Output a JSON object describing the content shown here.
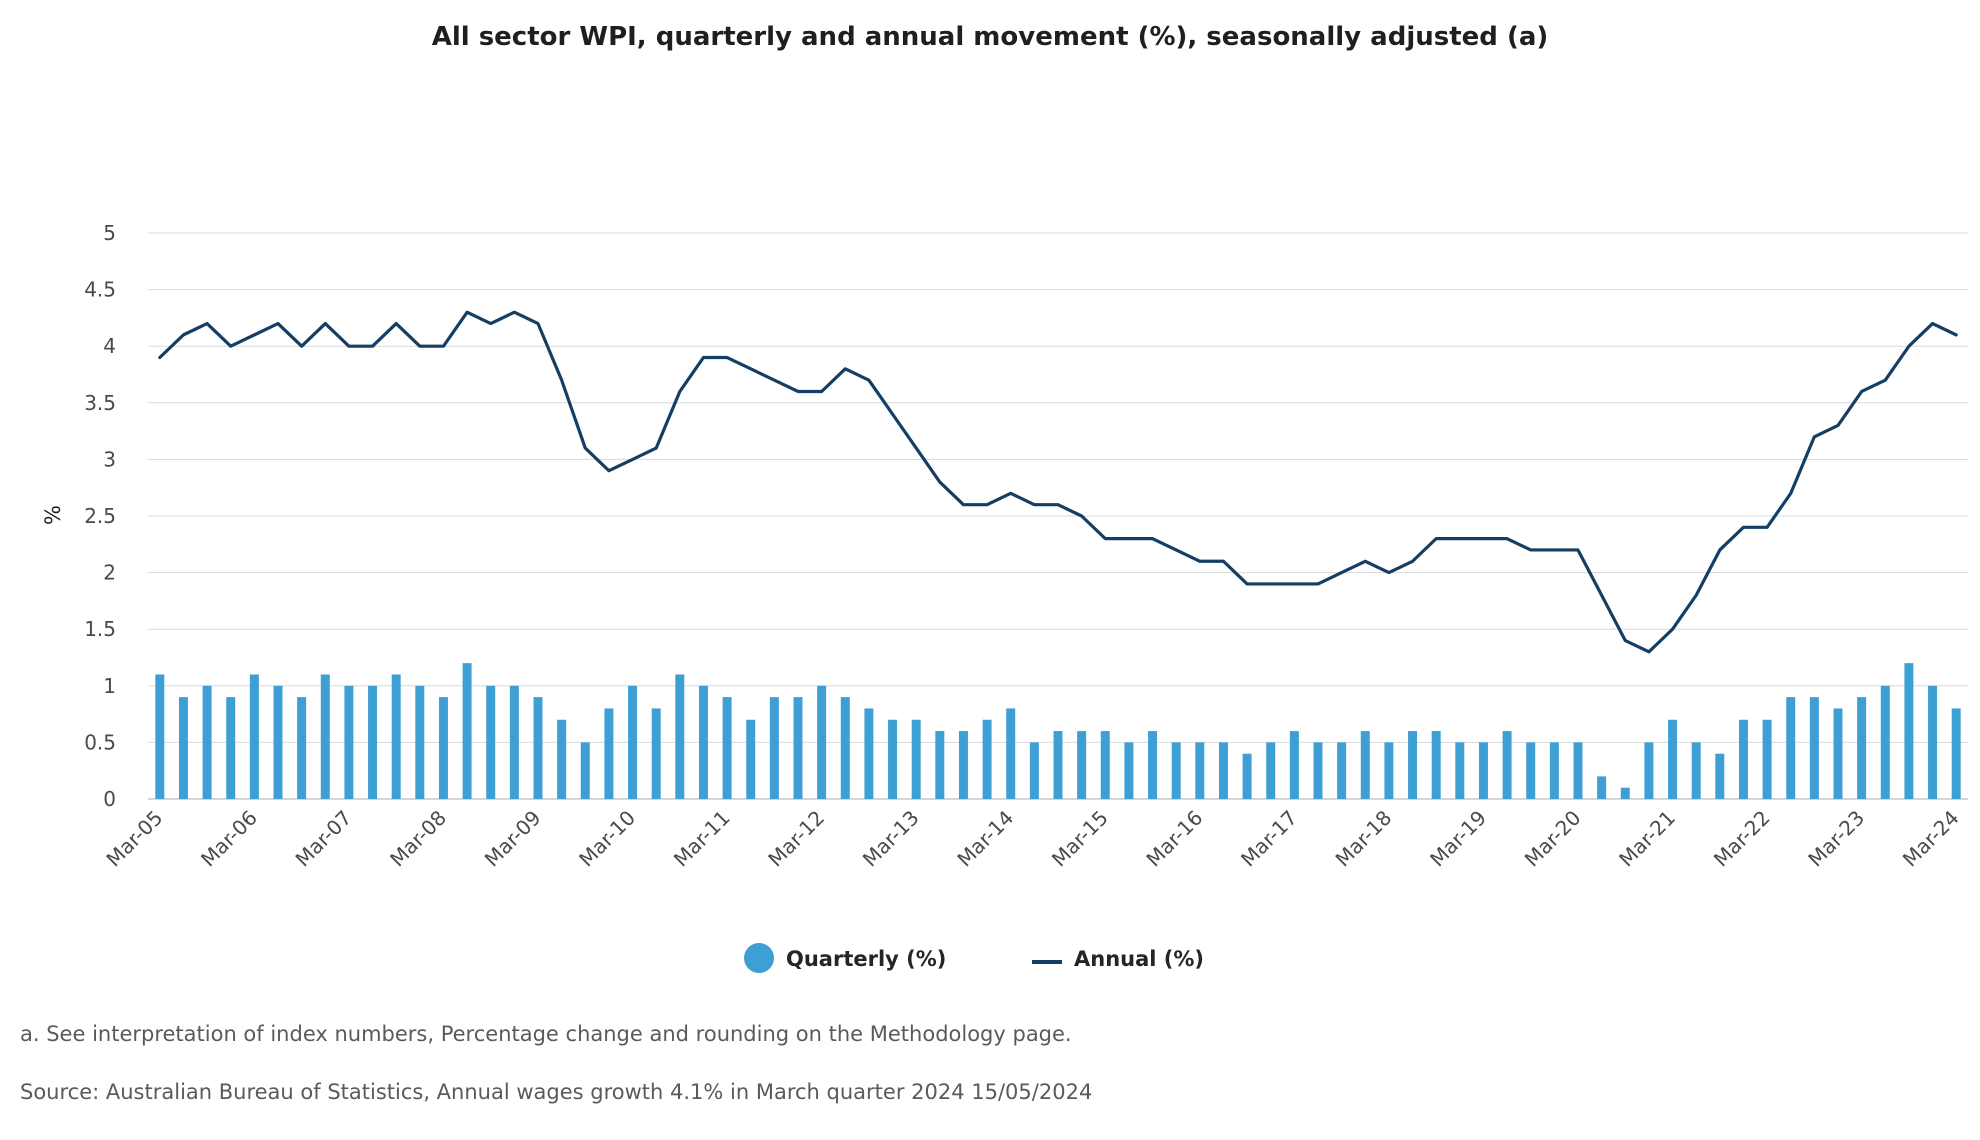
{
  "footnote": "a. See interpretation of index numbers, Percentage change and rounding on the Methodology page.",
  "source": "Source: Australian Bureau of Statistics, Annual wages growth 4.1% in March quarter 2024 15/05/2024",
  "colors": {
    "quarterly": "#3d9fd4",
    "annual": "#143e63",
    "grid": "#d9d9d9",
    "baseline": "#c8c8c8"
  },
  "chart_data": {
    "type": "bar+line",
    "title": "All sector WPI, quarterly and annual movement (%), seasonally adjusted (a)",
    "xlabel": "",
    "ylabel": "%",
    "ylim": [
      0,
      5
    ],
    "yticks": [
      "0",
      "0.5",
      "1",
      "1.5",
      "2",
      "2.5",
      "3",
      "3.5",
      "4",
      "4.5",
      "5"
    ],
    "ytick_values": [
      0,
      0.5,
      1,
      1.5,
      2,
      2.5,
      3,
      3.5,
      4,
      4.5,
      5
    ],
    "x_tick_labels": [
      "Mar-05",
      "Mar-06",
      "Mar-07",
      "Mar-08",
      "Mar-09",
      "Mar-10",
      "Mar-11",
      "Mar-12",
      "Mar-13",
      "Mar-14",
      "Mar-15",
      "Mar-16",
      "Mar-17",
      "Mar-18",
      "Mar-19",
      "Mar-20",
      "Mar-21",
      "Mar-22",
      "Mar-23",
      "Mar-24"
    ],
    "x_tick_every": 4,
    "quarters_count": 77,
    "grid": true,
    "legend_position": "bottom-center",
    "series": [
      {
        "name": "Quarterly (%)",
        "type": "bar",
        "values": [
          1.1,
          0.9,
          1.0,
          0.9,
          1.1,
          1.0,
          0.9,
          1.1,
          1.0,
          1.0,
          1.1,
          1.0,
          0.9,
          1.2,
          1.0,
          1.0,
          0.9,
          0.7,
          0.5,
          0.8,
          1.0,
          0.8,
          1.1,
          1.0,
          0.9,
          0.7,
          0.9,
          0.9,
          1.0,
          0.9,
          0.8,
          0.7,
          0.7,
          0.6,
          0.6,
          0.7,
          0.8,
          0.5,
          0.6,
          0.6,
          0.6,
          0.5,
          0.6,
          0.5,
          0.5,
          0.5,
          0.4,
          0.5,
          0.6,
          0.5,
          0.5,
          0.6,
          0.5,
          0.6,
          0.6,
          0.5,
          0.5,
          0.6,
          0.5,
          0.5,
          0.5,
          0.2,
          0.1,
          0.5,
          0.7,
          0.5,
          0.4,
          0.7,
          0.7,
          0.9,
          0.9,
          0.8,
          0.9,
          1.0,
          1.2,
          1.0,
          0.8
        ]
      },
      {
        "name": "Annual (%)",
        "type": "line",
        "values": [
          3.9,
          4.1,
          4.2,
          4.0,
          4.1,
          4.2,
          4.0,
          4.2,
          4.0,
          4.0,
          4.2,
          4.0,
          4.0,
          4.3,
          4.2,
          4.3,
          4.2,
          3.7,
          3.1,
          2.9,
          3.0,
          3.1,
          3.6,
          3.9,
          3.9,
          3.8,
          3.7,
          3.6,
          3.6,
          3.8,
          3.7,
          3.4,
          3.1,
          2.8,
          2.6,
          2.6,
          2.7,
          2.6,
          2.6,
          2.5,
          2.3,
          2.3,
          2.3,
          2.2,
          2.1,
          2.1,
          1.9,
          1.9,
          1.9,
          1.9,
          2.0,
          2.1,
          2.0,
          2.1,
          2.3,
          2.3,
          2.3,
          2.3,
          2.2,
          2.2,
          2.2,
          1.8,
          1.4,
          1.3,
          1.5,
          1.8,
          2.2,
          2.4,
          2.4,
          2.7,
          3.2,
          3.3,
          3.6,
          3.7,
          4.0,
          4.2,
          4.1
        ]
      }
    ]
  }
}
